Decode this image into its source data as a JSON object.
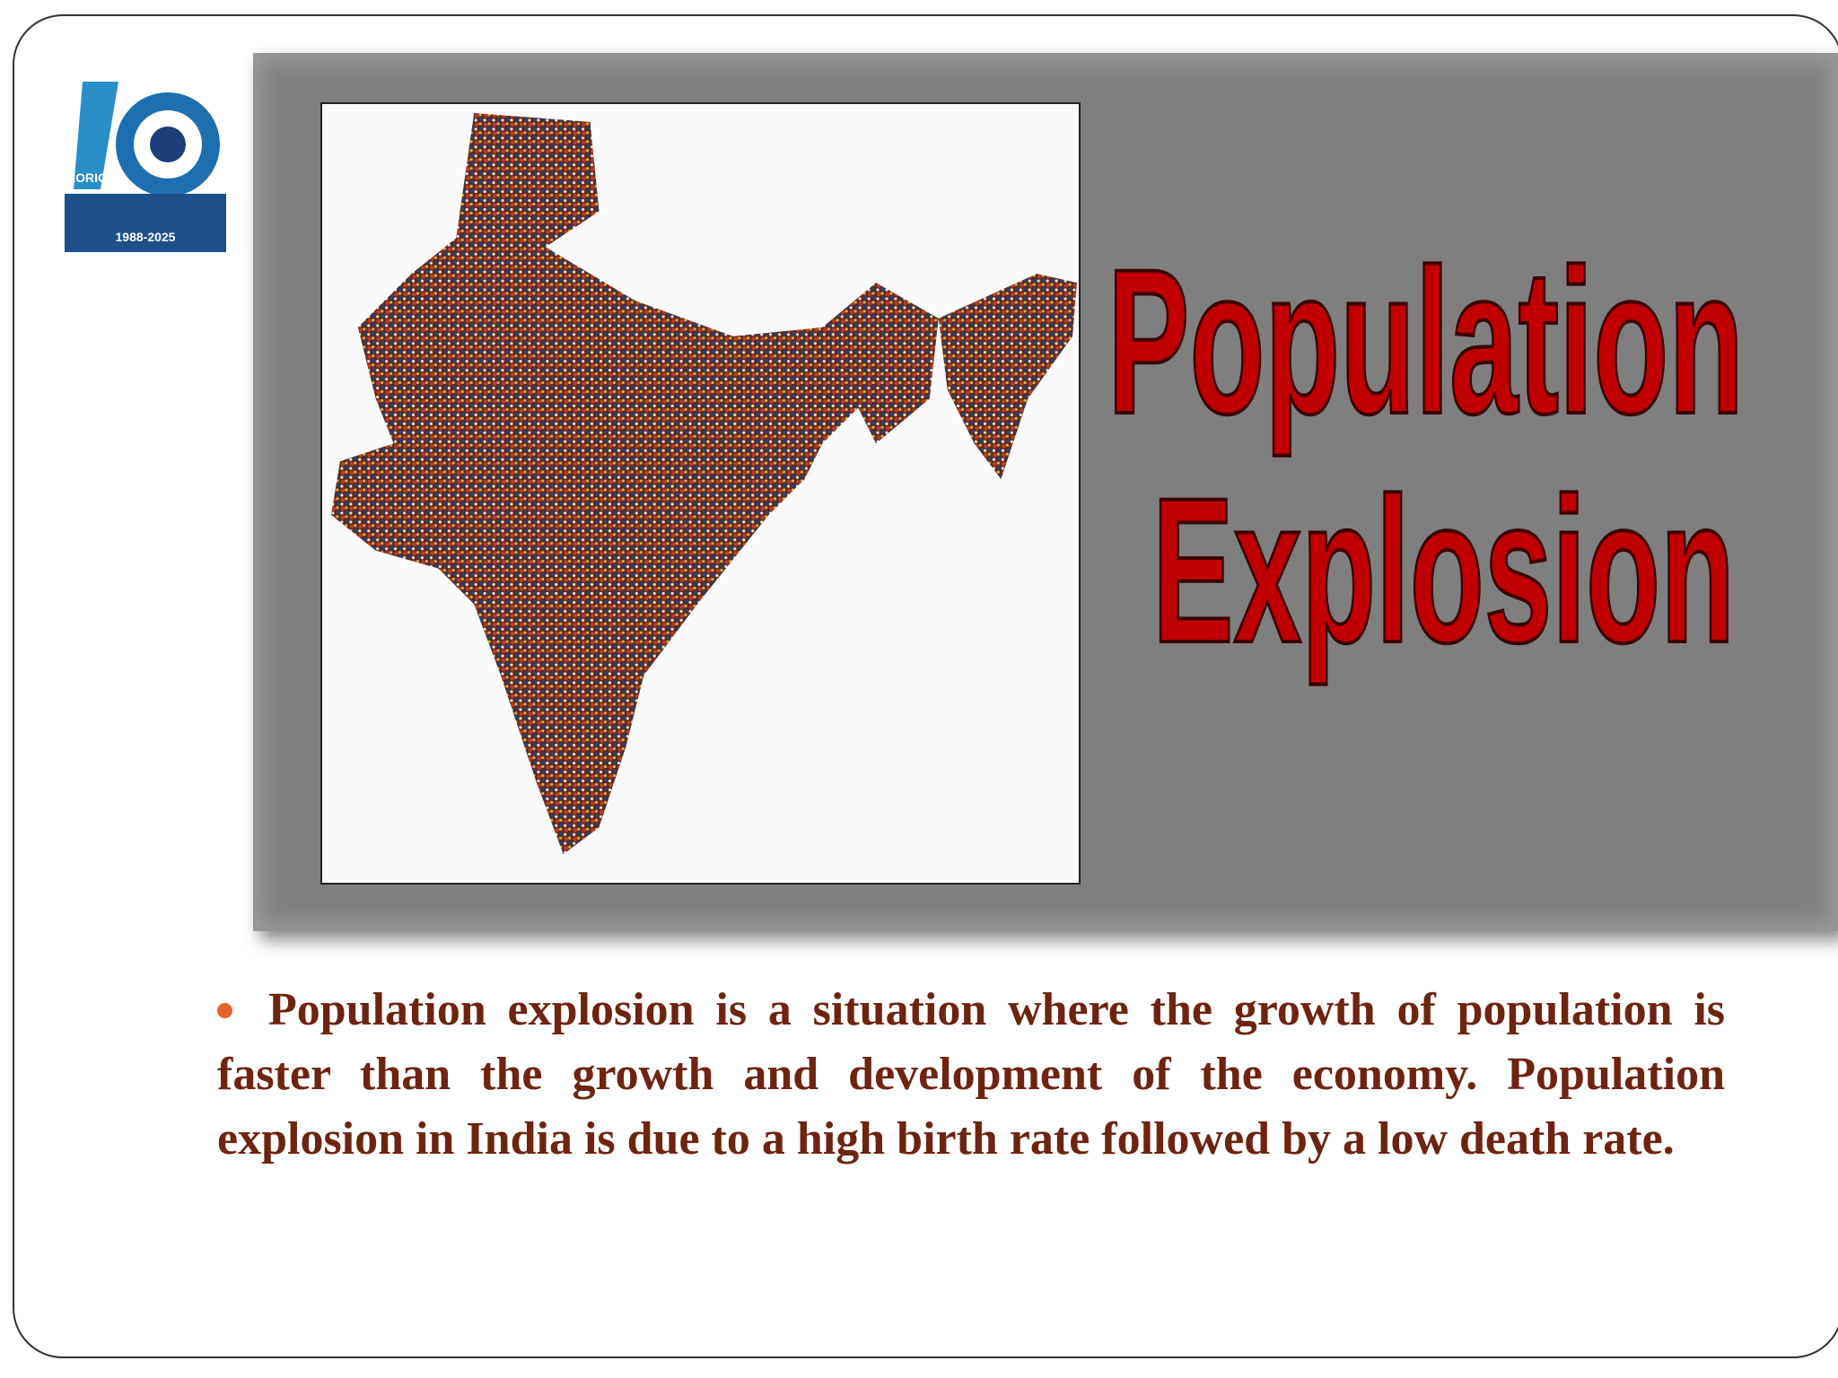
{
  "slide": {
    "logo": {
      "word": "GLORIOUS",
      "years": "1988-2025"
    },
    "title": {
      "line1": "Population",
      "line2": "Explosion"
    },
    "bullets": [
      "Population explosion is a situation where  the growth of population is faster than the growth  and development of the economy. Population  explosion in India is due to a high birth rate  followed by a low death rate."
    ]
  }
}
